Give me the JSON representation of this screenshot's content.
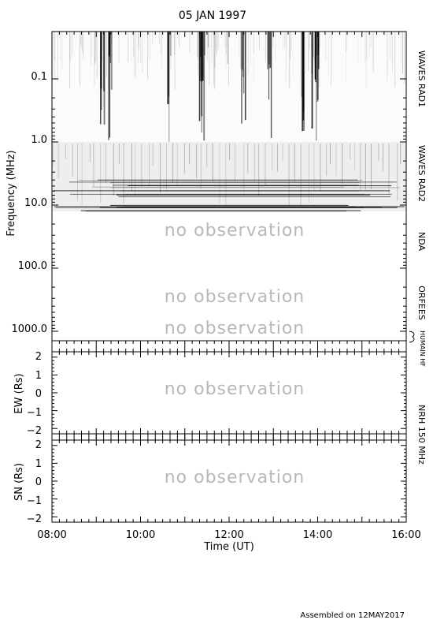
{
  "chart_data": {
    "type": "heatmap",
    "title": "05 JAN 1997",
    "x_axis": {
      "label": "Time (UT)",
      "range": [
        "08:00",
        "16:00"
      ],
      "ticks": [
        "08:00",
        "10:00",
        "12:00",
        "14:00",
        "16:00"
      ]
    },
    "spectrogram": {
      "ylabel": "Frequency (MHz)",
      "y_scale": "log",
      "y_tick_labels": [
        "0.1",
        "1.0",
        "10.0",
        "100.0",
        "1000.0"
      ],
      "bands": [
        {
          "label": "WAVES RAD1",
          "observed": true
        },
        {
          "label": "WAVES RAD2",
          "observed": true
        },
        {
          "label": "NDA",
          "observed": false,
          "note": "no observation"
        },
        {
          "label": "ORFEES",
          "observed": false,
          "note": "no observation"
        },
        {
          "label": "HUMAIN HF",
          "observed": false,
          "note": "no observation"
        }
      ],
      "burst_times": [
        "09:08",
        "09:20",
        "10:40",
        "11:20",
        "11:24",
        "12:20",
        "12:55",
        "13:40",
        "13:55",
        "14:00"
      ]
    },
    "ew_panel": {
      "ylabel": "EW (Rs)",
      "y_tick_labels": [
        "2",
        "1",
        "0",
        "−1",
        "−2"
      ],
      "ylim": [
        -2.3,
        2.3
      ],
      "note": "no observation"
    },
    "sn_panel": {
      "ylabel": "SN (Rs)",
      "y_tick_labels": [
        "2",
        "1",
        "0",
        "−1",
        "−2"
      ],
      "ylim": [
        -2.3,
        2.3
      ],
      "note": "no observation"
    },
    "nrh_label": "NRH 150 MHz"
  },
  "footer": "Assembled on 12MAY2017"
}
